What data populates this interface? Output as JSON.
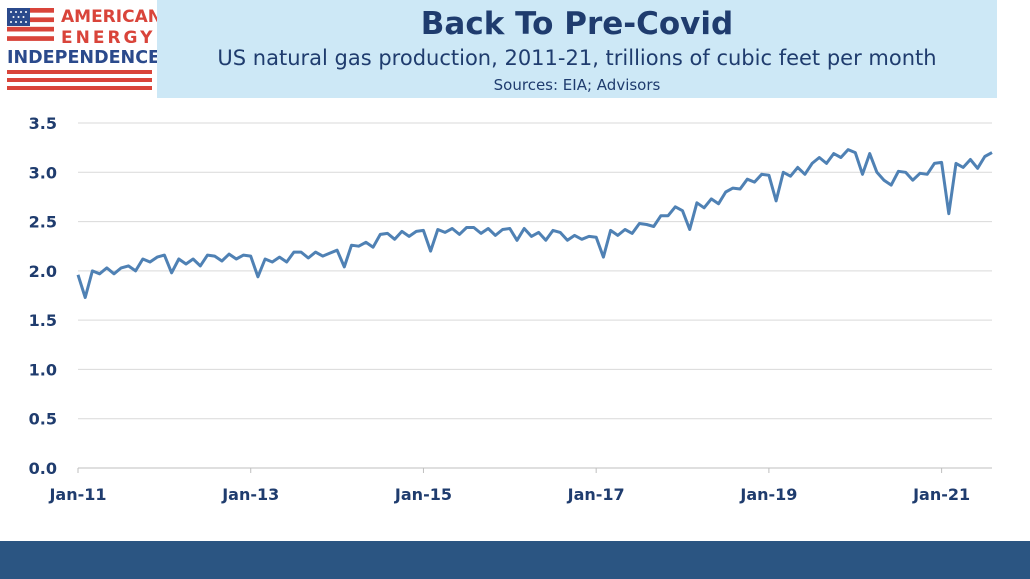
{
  "logo": {
    "line1": "AMERICAN",
    "line2": "ENERGY",
    "line3": "INDEPENDENCE",
    "flag": "us-flag"
  },
  "header": {
    "title": "Back To Pre-Covid",
    "subtitle": "US natural gas production, 2011-21, trillions of cubic feet per month",
    "sources": "Sources: EIA; Advisors"
  },
  "colors": {
    "line": "#4f81b4",
    "header_bg": "#cde8f6",
    "title": "#1f3c6e",
    "footer": "#2b5582",
    "logo_red": "#d9443a",
    "logo_blue": "#2b4a8c"
  },
  "chart_data": {
    "type": "line",
    "title": "Back To Pre-Covid",
    "xlabel": "",
    "ylabel": "",
    "ylim": [
      0,
      3.5
    ],
    "yticks": [
      "0.0",
      "0.5",
      "1.0",
      "1.5",
      "2.0",
      "2.5",
      "3.0",
      "3.5"
    ],
    "xticks": [
      "Jan-11",
      "Jan-13",
      "Jan-15",
      "Jan-17",
      "Jan-19",
      "Jan-21"
    ],
    "x_start": "Jan-11",
    "grid": true,
    "legend": "none",
    "series": [
      {
        "values": [
          1.96,
          1.73,
          2.0,
          1.97,
          2.03,
          1.97,
          2.03,
          2.05,
          2.0,
          2.12,
          2.09,
          2.14,
          2.16,
          1.98,
          2.12,
          2.07,
          2.12,
          2.05,
          2.16,
          2.15,
          2.1,
          2.17,
          2.12,
          2.16,
          2.15,
          1.94,
          2.12,
          2.09,
          2.14,
          2.09,
          2.19,
          2.19,
          2.13,
          2.19,
          2.15,
          2.18,
          2.21,
          2.04,
          2.26,
          2.25,
          2.29,
          2.24,
          2.37,
          2.38,
          2.32,
          2.4,
          2.35,
          2.4,
          2.41,
          2.2,
          2.42,
          2.39,
          2.43,
          2.37,
          2.44,
          2.44,
          2.38,
          2.43,
          2.36,
          2.42,
          2.43,
          2.31,
          2.43,
          2.35,
          2.39,
          2.31,
          2.41,
          2.39,
          2.31,
          2.36,
          2.32,
          2.35,
          2.34,
          2.14,
          2.41,
          2.36,
          2.42,
          2.38,
          2.48,
          2.47,
          2.45,
          2.56,
          2.56,
          2.65,
          2.61,
          2.42,
          2.69,
          2.64,
          2.73,
          2.68,
          2.8,
          2.84,
          2.83,
          2.93,
          2.9,
          2.98,
          2.97,
          2.71,
          3.0,
          2.96,
          3.05,
          2.98,
          3.09,
          3.15,
          3.09,
          3.19,
          3.15,
          3.23,
          3.2,
          2.98,
          3.19,
          3.0,
          2.92,
          2.87,
          3.01,
          3.0,
          2.92,
          2.99,
          2.98,
          3.09,
          3.1,
          2.58,
          3.09,
          3.05,
          3.13,
          3.04,
          3.16,
          3.2
        ]
      }
    ]
  }
}
